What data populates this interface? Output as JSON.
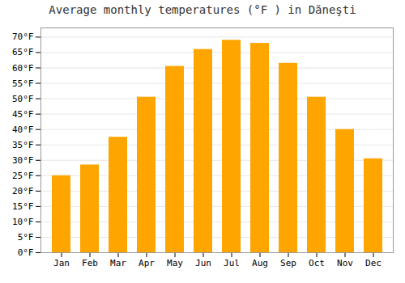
{
  "chart_data": {
    "type": "bar",
    "title": "Average monthly temperatures (°F ) in Dăneşti",
    "categories": [
      "Jan",
      "Feb",
      "Mar",
      "Apr",
      "May",
      "Jun",
      "Jul",
      "Aug",
      "Sep",
      "Oct",
      "Nov",
      "Dec"
    ],
    "values": [
      25,
      28.5,
      37.5,
      50.5,
      60.5,
      66,
      69,
      68,
      61.5,
      50.5,
      40,
      30.5
    ],
    "color": "#FFA500",
    "ylim": [
      0,
      73
    ],
    "yticks": [
      {
        "value": 0,
        "label": "0°F"
      },
      {
        "value": 5,
        "label": "5°F"
      },
      {
        "value": 10,
        "label": "10°F"
      },
      {
        "value": 15,
        "label": "15°F"
      },
      {
        "value": 20,
        "label": "20°F"
      },
      {
        "value": 25,
        "label": "25°F"
      },
      {
        "value": 30,
        "label": "30°F"
      },
      {
        "value": 35,
        "label": "35°F"
      },
      {
        "value": 40,
        "label": "40°F"
      },
      {
        "value": 45,
        "label": "45°F"
      },
      {
        "value": 50,
        "label": "50°F"
      },
      {
        "value": 55,
        "label": "55°F"
      },
      {
        "value": 60,
        "label": "60°F"
      },
      {
        "value": 65,
        "label": "65°F"
      },
      {
        "value": 70,
        "label": "70°F"
      }
    ],
    "grid": true
  }
}
